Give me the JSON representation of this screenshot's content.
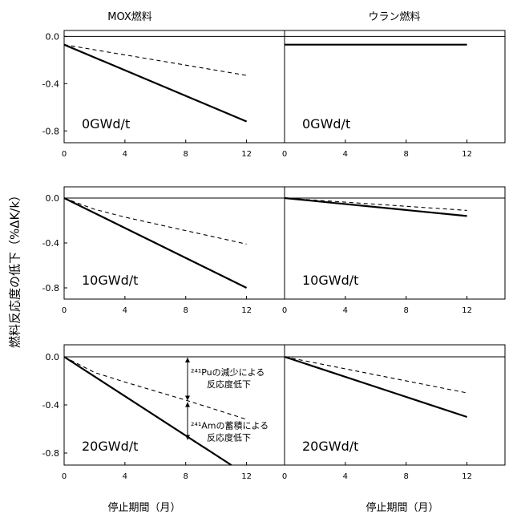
{
  "columns": [
    "MOX燃料",
    "ウラン燃料"
  ],
  "xlabel": "停止期間（月）",
  "ylabel": "燃料反応度の低下（%ΔK/k）",
  "annotations": {
    "pu": [
      "²⁴¹Puの減少による",
      "反応度低下"
    ],
    "am": [
      "²⁴¹Amの蓄積による",
      "反応度低下"
    ]
  },
  "chart_data": [
    {
      "type": "line",
      "fuel": "MOX燃料",
      "burnup_label": "0GWd/t",
      "xlim": [
        0,
        14.5
      ],
      "ylim": [
        -0.9,
        0.05
      ],
      "xticks": [
        0,
        4,
        8,
        12
      ],
      "yticks": [
        0.0,
        -0.4,
        -0.8
      ],
      "xtick_labels": [
        "0",
        "4",
        "8",
        "12"
      ],
      "ytick_labels": [
        "0.0",
        "-0.4",
        "-0.8"
      ],
      "series": [
        {
          "style": "solid",
          "x": [
            0,
            12
          ],
          "y": [
            -0.07,
            -0.72
          ]
        },
        {
          "style": "dashed",
          "x": [
            0,
            12
          ],
          "y": [
            -0.07,
            -0.33
          ]
        }
      ]
    },
    {
      "type": "line",
      "fuel": "ウラン燃料",
      "burnup_label": "0GWd/t",
      "xlim": [
        0,
        14.5
      ],
      "ylim": [
        -0.9,
        0.05
      ],
      "xticks": [
        0,
        4,
        8,
        12
      ],
      "yticks": [],
      "xtick_labels": [
        "0",
        "4",
        "8",
        "12"
      ],
      "ytick_labels": [],
      "series": [
        {
          "style": "solid",
          "x": [
            0,
            12
          ],
          "y": [
            -0.07,
            -0.07
          ]
        },
        {
          "style": "dashed",
          "x": [
            0,
            12
          ],
          "y": [
            -0.07,
            -0.07
          ]
        }
      ]
    },
    {
      "type": "line",
      "fuel": "MOX燃料",
      "burnup_label": "10GWd/t",
      "xlim": [
        0,
        14.5
      ],
      "ylim": [
        -0.9,
        0.1
      ],
      "xticks": [
        0,
        4,
        8,
        12
      ],
      "yticks": [
        0.0,
        -0.4,
        -0.8
      ],
      "xtick_labels": [
        "0",
        "4",
        "8",
        "12"
      ],
      "ytick_labels": [
        "0.0",
        "-0.4",
        "-0.8"
      ],
      "series": [
        {
          "style": "solid",
          "x": [
            0,
            12
          ],
          "y": [
            0.0,
            -0.8
          ]
        },
        {
          "style": "dashed",
          "x": [
            0,
            2,
            4,
            8,
            12
          ],
          "y": [
            0.0,
            -0.1,
            -0.17,
            -0.29,
            -0.41
          ]
        }
      ]
    },
    {
      "type": "line",
      "fuel": "ウラン燃料",
      "burnup_label": "10GWd/t",
      "xlim": [
        0,
        14.5
      ],
      "ylim": [
        -0.9,
        0.1
      ],
      "xticks": [
        0,
        4,
        8,
        12
      ],
      "yticks": [],
      "xtick_labels": [
        "0",
        "4",
        "8",
        "12"
      ],
      "ytick_labels": [],
      "series": [
        {
          "style": "solid",
          "x": [
            0,
            12
          ],
          "y": [
            0.0,
            -0.16
          ]
        },
        {
          "style": "dashed",
          "x": [
            0,
            12
          ],
          "y": [
            0.0,
            -0.11
          ]
        }
      ]
    },
    {
      "type": "line",
      "fuel": "MOX燃料",
      "burnup_label": "20GWd/t",
      "xlim": [
        0,
        14.5
      ],
      "ylim": [
        -0.9,
        0.1
      ],
      "xticks": [
        0,
        4,
        8,
        12
      ],
      "yticks": [
        0.0,
        -0.4,
        -0.8
      ],
      "xtick_labels": [
        "0",
        "4",
        "8",
        "12"
      ],
      "ytick_labels": [
        "0.0",
        "-0.4",
        "-0.8"
      ],
      "series": [
        {
          "style": "solid",
          "x": [
            0,
            11
          ],
          "y": [
            0.0,
            -0.9
          ]
        },
        {
          "style": "dashed",
          "x": [
            0,
            2,
            4,
            8,
            12
          ],
          "y": [
            0.0,
            -0.13,
            -0.21,
            -0.36,
            -0.52
          ]
        }
      ]
    },
    {
      "type": "line",
      "fuel": "ウラン燃料",
      "burnup_label": "20GWd/t",
      "xlim": [
        0,
        14.5
      ],
      "ylim": [
        -0.9,
        0.1
      ],
      "xticks": [
        0,
        4,
        8,
        12
      ],
      "yticks": [],
      "xtick_labels": [
        "0",
        "4",
        "8",
        "12"
      ],
      "ytick_labels": [],
      "series": [
        {
          "style": "solid",
          "x": [
            0,
            12
          ],
          "y": [
            0.0,
            -0.5
          ]
        },
        {
          "style": "dashed",
          "x": [
            0,
            12
          ],
          "y": [
            0.0,
            -0.3
          ]
        }
      ]
    }
  ]
}
